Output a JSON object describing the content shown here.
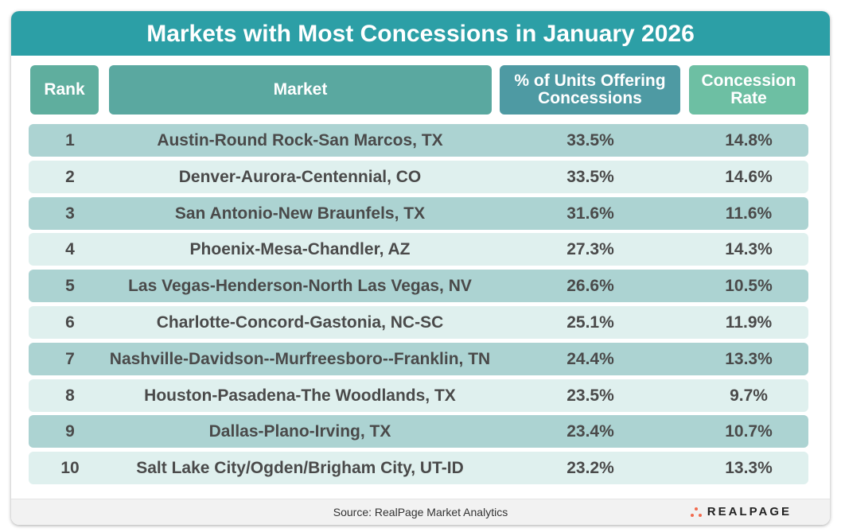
{
  "title": "Markets with Most Concessions in January 2026",
  "colors": {
    "title_bar": "#2c9fa6",
    "header_rank": "#5fae9e",
    "header_market": "#5aa8a0",
    "header_pct": "#4e9aa3",
    "header_rate": "#6dbfa3",
    "row_dark": "#acd3d2",
    "row_light": "#dff0ee",
    "logo_accent": "#f26b4f"
  },
  "headers": {
    "rank": "Rank",
    "market": "Market",
    "pct": "% of Units Offering Concessions",
    "rate": "Concession Rate"
  },
  "chart_data": {
    "type": "table",
    "title": "Markets with Most Concessions in January 2026",
    "columns": [
      "Rank",
      "Market",
      "% of Units Offering Concessions",
      "Concession Rate"
    ],
    "rows": [
      {
        "rank": "1",
        "market": "Austin-Round Rock-San Marcos, TX",
        "pct": "33.5%",
        "rate": "14.8%"
      },
      {
        "rank": "2",
        "market": "Denver-Aurora-Centennial, CO",
        "pct": "33.5%",
        "rate": "14.6%"
      },
      {
        "rank": "3",
        "market": "San Antonio-New Braunfels, TX",
        "pct": "31.6%",
        "rate": "11.6%"
      },
      {
        "rank": "4",
        "market": "Phoenix-Mesa-Chandler, AZ",
        "pct": "27.3%",
        "rate": "14.3%"
      },
      {
        "rank": "5",
        "market": "Las Vegas-Henderson-North Las Vegas, NV",
        "pct": "26.6%",
        "rate": "10.5%"
      },
      {
        "rank": "6",
        "market": "Charlotte-Concord-Gastonia, NC-SC",
        "pct": "25.1%",
        "rate": "11.9%"
      },
      {
        "rank": "7",
        "market": "Nashville-Davidson--Murfreesboro--Franklin, TN",
        "pct": "24.4%",
        "rate": "13.3%"
      },
      {
        "rank": "8",
        "market": "Houston-Pasadena-The Woodlands, TX",
        "pct": "23.5%",
        "rate": "9.7%"
      },
      {
        "rank": "9",
        "market": "Dallas-Plano-Irving, TX",
        "pct": "23.4%",
        "rate": "10.7%"
      },
      {
        "rank": "10",
        "market": "Salt Lake City/Ogden/Brigham City, UT-ID",
        "pct": "23.2%",
        "rate": "13.3%"
      }
    ]
  },
  "footer": {
    "source": "Source:  RealPage Market Analytics",
    "logo": "REALPAGE"
  }
}
